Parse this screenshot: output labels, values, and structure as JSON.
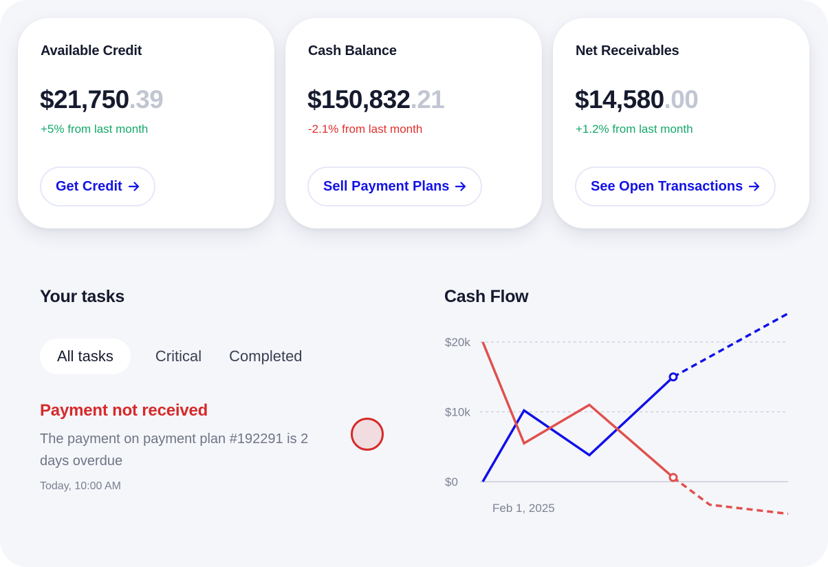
{
  "cards": [
    {
      "title": "Available Credit",
      "amount_main": "$21,750",
      "amount_cents": ".39",
      "change": "+5% from last month",
      "trend": "up",
      "cta": "Get Credit"
    },
    {
      "title": "Cash Balance",
      "amount_main": "$150,832",
      "amount_cents": ".21",
      "change": "-2.1% from last month",
      "trend": "down",
      "cta": "Sell Payment Plans"
    },
    {
      "title": "Net Receivables",
      "amount_main": "$14,580",
      "amount_cents": ".00",
      "change": "+1.2% from last month",
      "trend": "up",
      "cta": "See Open Transactions"
    }
  ],
  "tasks": {
    "title": "Your tasks",
    "tabs": [
      {
        "label": "All tasks",
        "active": true
      },
      {
        "label": "Critical",
        "active": false
      },
      {
        "label": "Completed",
        "active": false
      }
    ],
    "items": [
      {
        "title": "Payment not received",
        "description": "The payment on payment plan #192291 is 2 days overdue",
        "time": "Today, 10:00 AM"
      }
    ]
  },
  "colors": {
    "accent": "#1313e6",
    "positive": "#14a86a",
    "negative": "#e0312f",
    "danger": "#d62a2a",
    "series_red": "#e0514d",
    "series_blue": "#1010e8"
  },
  "icons": {
    "cta_arrow": "arrow-right-icon",
    "task_status": "alert-circle-icon"
  },
  "chart_data": {
    "type": "line",
    "title": "Cash Flow",
    "x_tick_labels": [
      "Feb 1, 2025"
    ],
    "y_ticks": [
      {
        "value": 0,
        "label": "$0"
      },
      {
        "value": 10000,
        "label": "$10k"
      },
      {
        "value": 20000,
        "label": "$20k"
      }
    ],
    "ylim": [
      0,
      20000
    ],
    "grid": true,
    "series": [
      {
        "color": "#1010e8",
        "actual": [
          0,
          10200,
          3800,
          15000
        ],
        "projected": [
          15000,
          24200
        ]
      },
      {
        "color": "#e0514d",
        "actual": [
          20000,
          5500,
          11000,
          600
        ],
        "projected": [
          600,
          -3300,
          -4600
        ]
      }
    ]
  }
}
